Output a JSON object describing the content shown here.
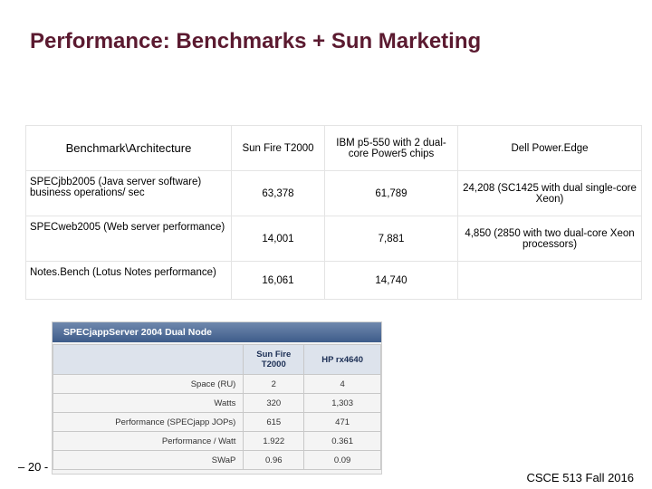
{
  "header": {
    "title": "Performance: Benchmarks + Sun Marketing"
  },
  "table": {
    "rows": [
      [
        "Benchmark\\Architecture",
        "Sun Fire T2000",
        "IBM p5-550 with 2 dual-core Power5 chips",
        "Dell Power.Edge"
      ],
      [
        "SPECjbb2005 (Java server software) business operations/ sec",
        "63,378",
        "61,789",
        "24,208 (SC1425 with dual single-core Xeon)"
      ],
      [
        "SPECweb2005 (Web server performance)",
        "14,001",
        "7,881",
        "4,850 (2850 with two dual-core Xeon processors)"
      ],
      [
        "Notes.Bench (Lotus Notes performance)",
        "16,061",
        "14,740"
      ]
    ]
  },
  "spec_table": {
    "title": "SPECjappServer 2004 Dual Node",
    "columns": [
      "Sun Fire T2000",
      "HP rx4640"
    ],
    "rows": [
      [
        "Space (RU)",
        "2",
        "4"
      ],
      [
        "Watts",
        "320",
        "1,303"
      ],
      [
        "Performance (SPECjapp JOPs)",
        "615",
        "471"
      ],
      [
        "Performance / Watt",
        "1.922",
        "0.361"
      ],
      [
        "SWaP",
        "0.96",
        "0.09"
      ]
    ]
  },
  "footer": {
    "page": "– 20 -",
    "course": "CSCE 513 Fall 2016"
  }
}
